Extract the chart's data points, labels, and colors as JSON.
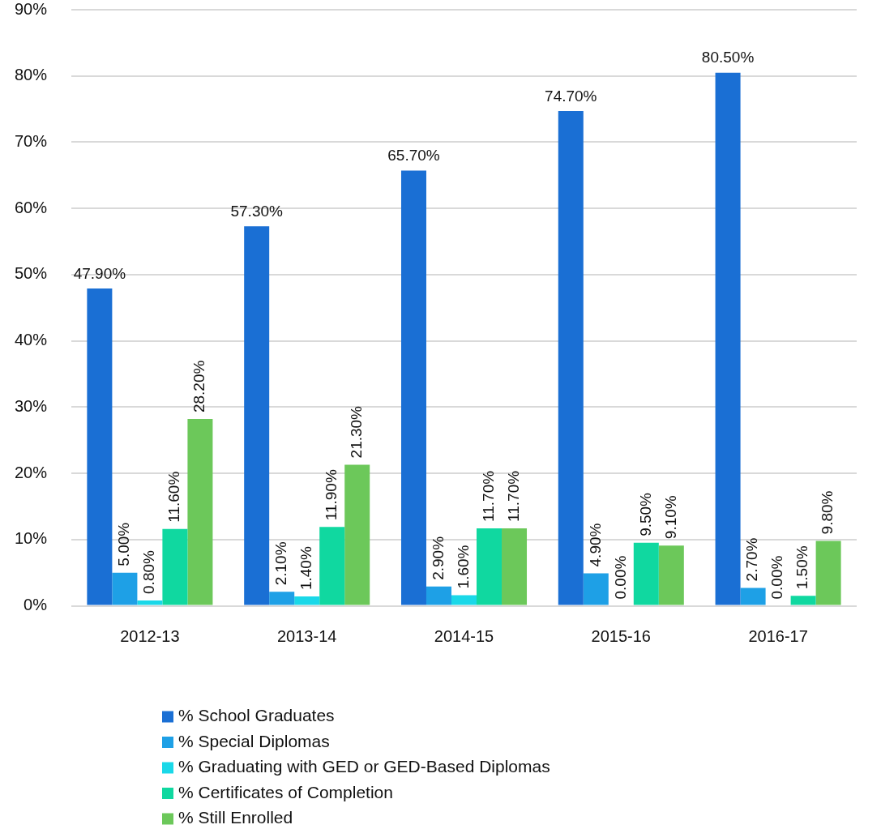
{
  "chart_data": {
    "type": "bar",
    "categories": [
      "2012-13",
      "2013-14",
      "2014-15",
      "2015-16",
      "2016-17"
    ],
    "series": [
      {
        "name": "% School Graduates",
        "color": "#1a6fd4",
        "values": [
          47.9,
          57.3,
          65.7,
          74.7,
          80.5
        ],
        "value_labels": [
          "47.90%",
          "57.30%",
          "65.70%",
          "74.70%",
          "80.50%"
        ]
      },
      {
        "name": "% Special Diplomas",
        "color": "#1ea0e6",
        "values": [
          5.0,
          2.1,
          2.9,
          4.9,
          2.7
        ],
        "value_labels": [
          "5.00%",
          "2.10%",
          "2.90%",
          "4.90%",
          "2.70%"
        ]
      },
      {
        "name": "% Graduating with GED or GED-Based Diplomas",
        "color": "#1ad8e8",
        "values": [
          0.8,
          1.4,
          1.6,
          0.0,
          0.0
        ],
        "value_labels": [
          "0.80%",
          "1.40%",
          "1.60%",
          "0.00%",
          "0.00%"
        ]
      },
      {
        "name": "% Certificates of Completion",
        "color": "#10d8a0",
        "values": [
          11.6,
          11.9,
          11.7,
          9.5,
          1.5
        ],
        "value_labels": [
          "11.60%",
          "11.90%",
          "11.70%",
          "9.50%",
          "1.50%"
        ]
      },
      {
        "name": "% Still Enrolled",
        "color": "#6cc85a",
        "values": [
          28.2,
          21.3,
          11.7,
          9.1,
          9.8
        ],
        "value_labels": [
          "28.20%",
          "21.30%",
          "11.70%",
          "9.10%",
          "9.80%"
        ]
      }
    ],
    "ylim": [
      0,
      90
    ],
    "yticks": [
      {
        "value": 0,
        "label": "0%"
      },
      {
        "value": 10,
        "label": "10%"
      },
      {
        "value": 20,
        "label": "20%"
      },
      {
        "value": 30,
        "label": "30%"
      },
      {
        "value": 40,
        "label": "40%"
      },
      {
        "value": 50,
        "label": "50%"
      },
      {
        "value": 60,
        "label": "60%"
      },
      {
        "value": 70,
        "label": "70%"
      },
      {
        "value": 80,
        "label": "80%"
      },
      {
        "value": 90,
        "label": "90%"
      }
    ],
    "grid": "y",
    "legend": "bottom"
  }
}
